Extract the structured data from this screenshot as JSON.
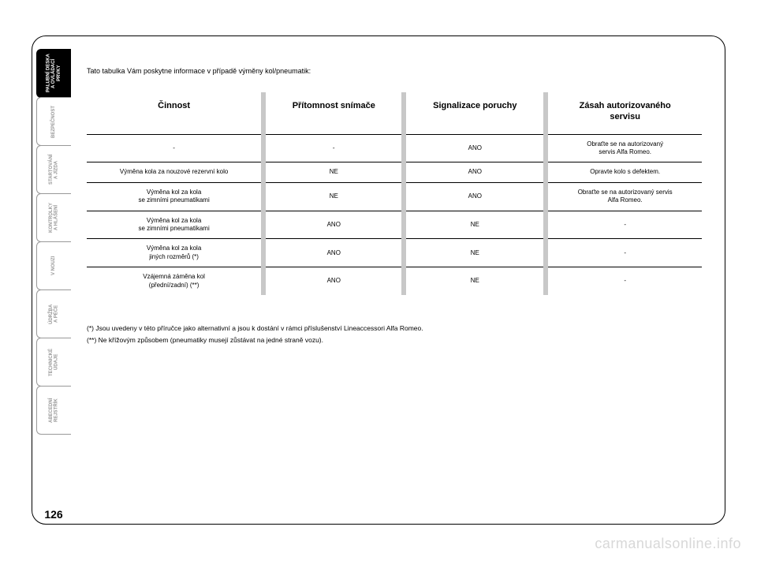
{
  "tabs": [
    {
      "label": "PALUBNÍ DESKA\nA OVLÁDACÍ PRVKY",
      "active": true
    },
    {
      "label": "BEZPEČNOST",
      "active": false
    },
    {
      "label": "STARTOVÁNÍ\nA JÍZDA",
      "active": false
    },
    {
      "label": "KONTROLKY\nA HLÁŠENÍ",
      "active": false
    },
    {
      "label": "V NOUZI",
      "active": false
    },
    {
      "label": "ÚDRŽBA\nA PÉČE",
      "active": false
    },
    {
      "label": "TECHNICKÉ ÚDAJE",
      "active": false
    },
    {
      "label": "ABECEDNÍ\nREJSTŘÍK",
      "active": false
    }
  ],
  "page_number": "126",
  "intro_text": "Tato tabulka Vám poskytne informace v případě výměny kol/pneumatik:",
  "table": {
    "headers": [
      "Činnost",
      "Přítomnost snímače",
      "Signalizace poruchy",
      "Zásah autorizovaného\nservisu"
    ],
    "rows": [
      [
        "-",
        "-",
        "ANO",
        "Obraťte se na autorizovaný\nservis Alfa Romeo."
      ],
      [
        "Výměna kola za nouzové rezervní kolo",
        "NE",
        "ANO",
        "Opravte kolo s defektem."
      ],
      [
        "Výměna kol za kola\nse zimními pneumatikami",
        "NE",
        "ANO",
        "Obraťte se na autorizovaný servis\nAlfa Romeo."
      ],
      [
        "Výměna kol za kola\nse zimními pneumatikami",
        "ANO",
        "NE",
        "-"
      ],
      [
        "Výměna kol za kola\njiných rozměrů (*)",
        "ANO",
        "NE",
        "-"
      ],
      [
        "Vzájemná záměna kol\n(přední/zadní) (**)",
        "ANO",
        "NE",
        "-"
      ]
    ]
  },
  "footnotes": [
    "(*) Jsou uvedeny v této příručce jako alternativní a jsou k dostání v rámci příslušenství Lineaccessori Alfa Romeo.",
    "(**) Ne křížovým způsobem (pneumatiky musejí zůstávat na jedné straně vozu)."
  ],
  "watermark": "carmanualsonline.info",
  "colors": {
    "sep_gray": "#c8c8c8",
    "border": "#000000",
    "watermark": "#d8d8d8"
  }
}
